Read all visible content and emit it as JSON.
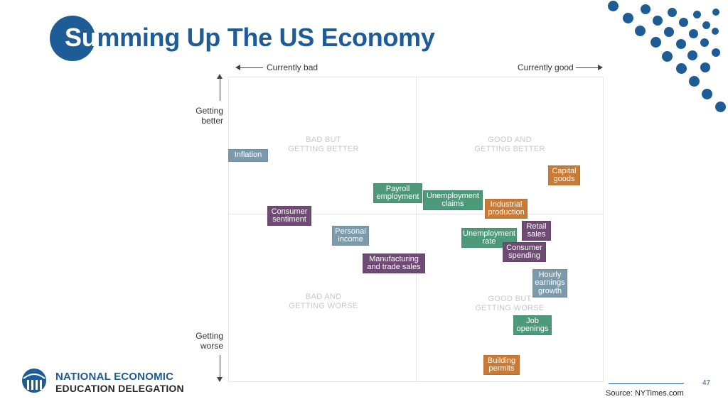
{
  "slide": {
    "title_first": "Su",
    "title_rest": "mming Up The US Economy",
    "page_number": "47",
    "source": "Source: NYTimes.com",
    "org_line1": "NATIONAL ECONOMIC",
    "org_line2": "EDUCATION DELEGATION"
  },
  "axes": {
    "left_label": "Currently bad",
    "right_label": "Currently good",
    "top_label_1": "Getting",
    "top_label_2": "better",
    "bottom_label_1": "Getting",
    "bottom_label_2": "worse"
  },
  "quadrants": {
    "top_left_1": "BAD BUT",
    "top_left_2": "GETTING BETTER",
    "top_right_1": "GOOD AND",
    "top_right_2": "GETTING BETTER",
    "bottom_left_1": "BAD AND",
    "bottom_left_2": "GETTING WORSE",
    "bottom_right_1": "GOOD BUT",
    "bottom_right_2": "GETTING WORSE"
  },
  "colors": {
    "brand_blue": "#1d5c96",
    "gray_blue": "#7b9aac",
    "green": "#4c9a7a",
    "orange": "#c87a37",
    "purple": "#6e4a75"
  },
  "indicators": [
    {
      "id": "inflation",
      "line1": "Inflation",
      "line2": ""
    },
    {
      "id": "payroll-employment",
      "line1": "Payroll",
      "line2": "employment"
    },
    {
      "id": "unemployment-claims",
      "line1": "Unemployment",
      "line2": "claims"
    },
    {
      "id": "capital-goods",
      "line1": "Capital",
      "line2": "goods"
    },
    {
      "id": "industrial-production",
      "line1": "Industrial",
      "line2": "production"
    },
    {
      "id": "consumer-sentiment",
      "line1": "Consumer",
      "line2": "sentiment"
    },
    {
      "id": "personal-income",
      "line1": "Personal",
      "line2": "income"
    },
    {
      "id": "retail-sales",
      "line1": "Retail",
      "line2": "sales"
    },
    {
      "id": "unemployment-rate",
      "line1": "Unemployment",
      "line2": "rate"
    },
    {
      "id": "consumer-spending",
      "line1": "Consumer",
      "line2": "spending"
    },
    {
      "id": "manufacturing-trade-sales",
      "line1": "Manufacturing",
      "line2": "and trade sales"
    },
    {
      "id": "hourly-earnings-growth",
      "line1": "Hourly",
      "line2": "earnings",
      "line3": "growth"
    },
    {
      "id": "job-openings",
      "line1": "Job",
      "line2": "openings"
    },
    {
      "id": "building-permits",
      "line1": "Building",
      "line2": "permits"
    }
  ]
}
